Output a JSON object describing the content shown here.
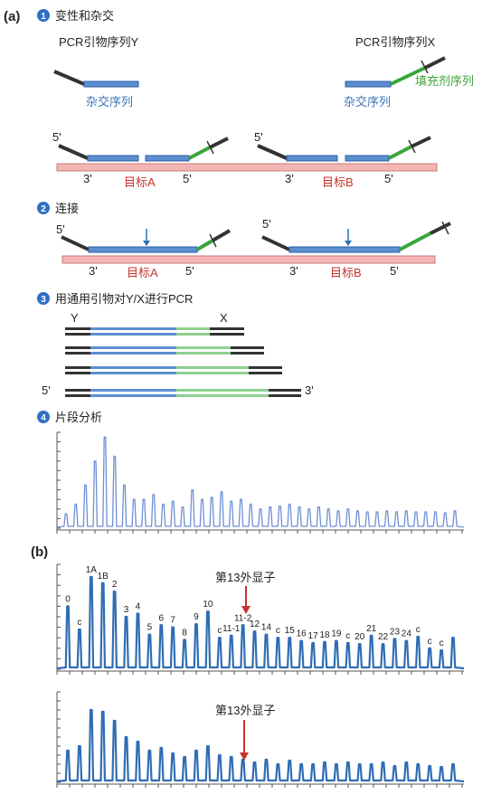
{
  "panel_a": {
    "label": "(a)",
    "step1": {
      "num": "1",
      "title": "变性和杂交"
    },
    "step2": {
      "num": "2",
      "title": "连接"
    },
    "step3": {
      "num": "3",
      "title": "用通用引物对Y/X进行PCR"
    },
    "step4": {
      "num": "4",
      "title": "片段分析"
    },
    "primer_y": "PCR引物序列Y",
    "primer_x": "PCR引物序列X",
    "hybrid_seq_left": "杂交序列",
    "hybrid_seq_right": "杂交序列",
    "stuffer_seq": "填充剂序列",
    "five_prime": "5'",
    "three_prime": "3'",
    "target_a": "目标A",
    "target_b": "目标B",
    "y_label": "Y",
    "x_label": "X"
  },
  "panel_b": {
    "label": "(b)",
    "exon_label": "第13外显子",
    "peak_labels": [
      "0",
      "c",
      "1A",
      "1B",
      "2",
      "3",
      "4",
      "5",
      "6",
      "7",
      "8",
      "9",
      "10",
      "c",
      "11-1",
      "11-2",
      "12",
      "14",
      "c",
      "15",
      "16",
      "17",
      "18",
      "19",
      "c",
      "20",
      "21",
      "22",
      "23",
      "24",
      "c",
      "c",
      "c"
    ]
  },
  "colors": {
    "blue": "#3a73b8",
    "green": "#3aa53a",
    "dark": "#333333",
    "target": "#f4b6b4",
    "red_text": "#c8322c",
    "trace_light": "#6f8fd6",
    "trace_dark": "#2f6db5",
    "badge": "#2f6fc4"
  },
  "chart_data": [
    {
      "type": "line",
      "title": "片段分析",
      "series": [
        {
          "values": [
            0.15,
            0.25,
            0.45,
            0.7,
            0.95,
            0.75,
            0.45,
            0.3,
            0.3,
            0.35,
            0.25,
            0.28,
            0.22,
            0.4,
            0.3,
            0.32,
            0.38,
            0.28,
            0.3,
            0.25,
            0.2,
            0.22,
            0.23,
            0.25,
            0.22,
            0.2,
            0.22,
            0.2,
            0.18,
            0.2,
            0.18,
            0.17,
            0.17,
            0.18,
            0.17,
            0.18,
            0.17,
            0.17,
            0.17,
            0.16,
            0.18
          ]
        }
      ]
    },
    {
      "type": "line",
      "series": [
        {
          "values": [
            0.6,
            0.38,
            0.88,
            0.82,
            0.74,
            0.5,
            0.53,
            0.33,
            0.42,
            0.4,
            0.28,
            0.43,
            0.55,
            0.3,
            0.32,
            0.42,
            0.36,
            0.33,
            0.3,
            0.3,
            0.27,
            0.25,
            0.26,
            0.27,
            0.25,
            0.24,
            0.32,
            0.24,
            0.29,
            0.27,
            0.31,
            0.2,
            0.18,
            0.3
          ]
        }
      ]
    },
    {
      "type": "line",
      "series": [
        {
          "values": [
            0.35,
            0.4,
            0.8,
            0.78,
            0.68,
            0.5,
            0.45,
            0.35,
            0.38,
            0.32,
            0.28,
            0.35,
            0.4,
            0.3,
            0.28,
            0.25,
            0.22,
            0.25,
            0.2,
            0.24,
            0.2,
            0.2,
            0.22,
            0.2,
            0.22,
            0.2,
            0.2,
            0.22,
            0.18,
            0.22,
            0.2,
            0.18,
            0.17,
            0.2
          ]
        }
      ]
    }
  ]
}
